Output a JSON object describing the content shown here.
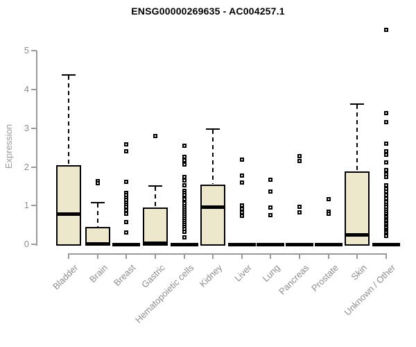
{
  "colors": {
    "box_fill": "#EDE8CC",
    "box_border": "#000000",
    "axis": "#999999",
    "tick_label": "#8c8c8c",
    "title": "#000000"
  },
  "chart_data": {
    "type": "boxplot",
    "title": "ENSG00000269635 - AC004257.1",
    "ylabel": "Expression",
    "xlabel": "",
    "ylim": [
      0,
      5.6
    ],
    "yticks": [
      0,
      1,
      2,
      3,
      4,
      5
    ],
    "grid": false,
    "legend": "none",
    "categories": [
      "Bladder",
      "Brain",
      "Breast",
      "Gastric",
      "Hematopoietic cells",
      "Kidney",
      "Liver",
      "Lung",
      "Pancreas",
      "Prostate",
      "Skin",
      "Unknown / Other"
    ],
    "series": [
      {
        "category": "Bladder",
        "q1": 0,
        "median": 0.79,
        "q3": 2.05,
        "whisker_low": 0,
        "whisker_high": 4.38,
        "outliers": []
      },
      {
        "category": "Brain",
        "q1": 0,
        "median": 0.02,
        "q3": 0.45,
        "whisker_low": 0,
        "whisker_high": 1.07,
        "outliers": [
          1.63,
          1.57
        ]
      },
      {
        "category": "Breast",
        "q1": 0,
        "median": 0,
        "q3": 0,
        "whisker_low": 0,
        "whisker_high": 0,
        "outliers": [
          2.58,
          2.4,
          1.61,
          1.33,
          1.27,
          1.21,
          1.15,
          1.08,
          1.02,
          0.96,
          0.88,
          0.79,
          0.57,
          0.3
        ]
      },
      {
        "category": "Gastric",
        "q1": 0,
        "median": 0.03,
        "q3": 0.95,
        "whisker_low": 0,
        "whisker_high": 1.5,
        "outliers": [
          2.8
        ]
      },
      {
        "category": "Hematopoietic cells",
        "q1": 0,
        "median": 0,
        "q3": 0,
        "whisker_low": 0,
        "whisker_high": 0,
        "outliers": [
          2.55,
          2.26,
          2.17,
          2.07,
          1.74,
          1.65,
          1.53,
          1.38,
          1.32,
          1.27,
          1.21,
          1.16,
          1.1,
          1.05,
          0.99,
          0.94,
          0.88,
          0.83,
          0.77,
          0.72,
          0.66,
          0.61,
          0.55,
          0.5,
          0.44,
          0.39,
          0.33,
          0.18
        ]
      },
      {
        "category": "Kidney",
        "q1": 0,
        "median": 0.97,
        "q3": 1.55,
        "whisker_low": 0,
        "whisker_high": 2.97,
        "outliers": []
      },
      {
        "category": "Liver",
        "q1": 0,
        "median": 0,
        "q3": 0,
        "whisker_low": 0,
        "whisker_high": 0,
        "outliers": [
          2.19,
          1.77,
          1.6,
          1.0,
          0.91,
          0.82,
          0.74
        ]
      },
      {
        "category": "Lung",
        "q1": 0,
        "median": 0,
        "q3": 0,
        "whisker_low": 0,
        "whisker_high": 0,
        "outliers": [
          1.66,
          1.36,
          0.95,
          0.75
        ]
      },
      {
        "category": "Pancreas",
        "q1": 0,
        "median": 0,
        "q3": 0,
        "whisker_low": 0,
        "whisker_high": 0,
        "outliers": [
          2.28,
          2.15,
          0.97,
          0.83
        ]
      },
      {
        "category": "Prostate",
        "q1": 0,
        "median": 0,
        "q3": 0,
        "whisker_low": 0,
        "whisker_high": 0,
        "outliers": [
          1.17,
          0.84,
          0.79
        ]
      },
      {
        "category": "Skin",
        "q1": 0,
        "median": 0.25,
        "q3": 1.88,
        "whisker_low": 0,
        "whisker_high": 3.62,
        "outliers": []
      },
      {
        "category": "Unknown / Other",
        "q1": 0,
        "median": 0,
        "q3": 0,
        "whisker_low": 0,
        "whisker_high": 0,
        "outliers": [
          5.54,
          3.39,
          3.16,
          2.6,
          2.4,
          2.31,
          2.12,
          1.92,
          1.82,
          1.74,
          1.53,
          1.44,
          1.36,
          1.28,
          1.18,
          1.1,
          1.03,
          0.96,
          0.89,
          0.84,
          0.79,
          0.74,
          0.7,
          0.65,
          0.61,
          0.56,
          0.52,
          0.47,
          0.43,
          0.38,
          0.34,
          0.3,
          0.25,
          0.21
        ]
      }
    ]
  }
}
